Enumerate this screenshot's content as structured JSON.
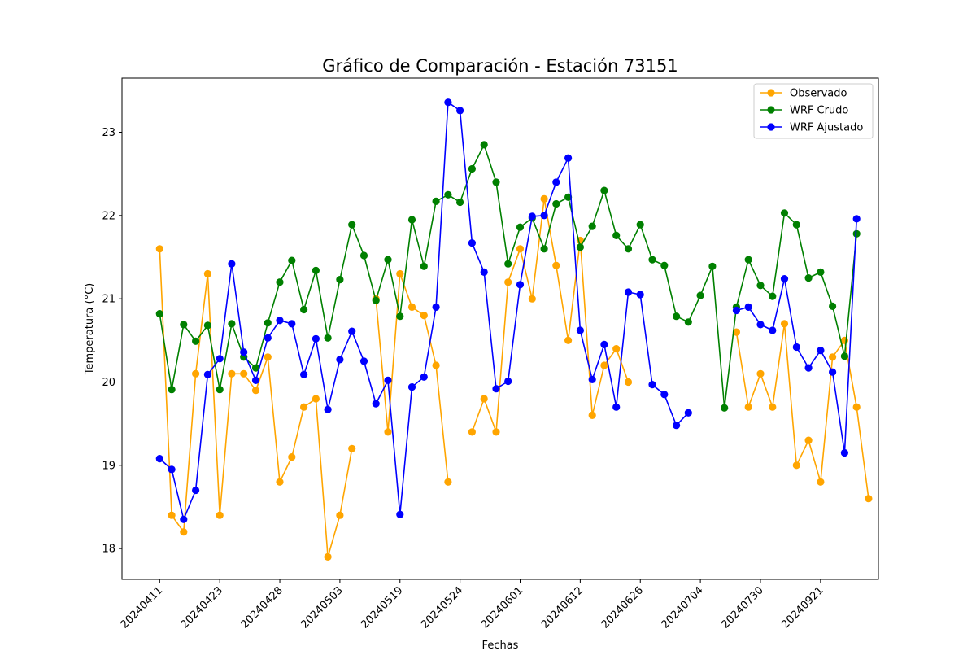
{
  "chart_data": {
    "type": "line",
    "title": "Gráfico de Comparación - Estación 73151",
    "xlabel": "Fechas",
    "ylabel": "Temperatura (°C)",
    "ylim": [
      17.63,
      23.65
    ],
    "yticks": [
      "18",
      "19",
      "20",
      "21",
      "22",
      "23"
    ],
    "xticks": [
      "20240411",
      "20240423",
      "20240428",
      "20240503",
      "20240519",
      "20240524",
      "20240601",
      "20240612",
      "20240626",
      "20240704",
      "20240730",
      "20240921"
    ],
    "xtick_index": [
      0,
      5,
      10,
      15,
      20,
      25,
      30,
      35,
      40,
      45,
      50,
      55
    ],
    "n_points": 60,
    "x_index": [
      0,
      1,
      2,
      3,
      4,
      5,
      6,
      7,
      8,
      9,
      10,
      11,
      12,
      13,
      14,
      15,
      16,
      17,
      18,
      19,
      20,
      21,
      22,
      23,
      24,
      25,
      26,
      27,
      28,
      29,
      30,
      31,
      32,
      33,
      34,
      35,
      36,
      37,
      38,
      39,
      40,
      41,
      42,
      43,
      44,
      45,
      46,
      47,
      48,
      49,
      50,
      51,
      52,
      53,
      54,
      55,
      56,
      57,
      58,
      59
    ],
    "legend_position": "top-right",
    "grid": false,
    "series": [
      {
        "name": "Observado",
        "color": "#ffa500",
        "values": [
          21.6,
          18.4,
          18.2,
          20.1,
          21.3,
          18.4,
          20.1,
          20.1,
          19.9,
          20.3,
          18.8,
          19.1,
          19.7,
          19.8,
          17.9,
          18.4,
          19.2,
          null,
          21.0,
          19.4,
          21.3,
          20.9,
          20.8,
          20.2,
          18.8,
          null,
          19.4,
          19.8,
          19.4,
          21.2,
          21.6,
          21.0,
          22.2,
          21.4,
          20.5,
          21.7,
          19.6,
          20.2,
          20.4,
          20.0,
          null,
          null,
          null,
          null,
          null,
          null,
          null,
          null,
          20.6,
          19.7,
          20.1,
          19.7,
          20.7,
          19.0,
          19.3,
          18.8,
          20.3,
          20.5,
          19.7,
          18.6
        ]
      },
      {
        "name": "WRF Crudo",
        "color": "#008000",
        "values": [
          20.82,
          19.91,
          20.69,
          20.49,
          20.68,
          19.91,
          20.7,
          20.3,
          20.17,
          20.71,
          21.2,
          21.46,
          20.87,
          21.34,
          20.53,
          21.23,
          21.89,
          21.52,
          20.98,
          21.47,
          20.79,
          21.95,
          21.39,
          22.17,
          22.25,
          22.16,
          22.56,
          22.85,
          22.4,
          21.42,
          21.86,
          21.97,
          21.6,
          22.14,
          22.22,
          21.62,
          21.87,
          22.3,
          21.76,
          21.6,
          21.89,
          21.47,
          21.4,
          20.79,
          20.72,
          21.04,
          21.39,
          19.69,
          20.9,
          21.47,
          21.16,
          21.03,
          22.03,
          21.89,
          21.25,
          21.32,
          20.91,
          20.31,
          21.78,
          null
        ]
      },
      {
        "name": "WRF Ajustado",
        "color": "#0000ff",
        "values": [
          19.08,
          18.95,
          18.35,
          18.7,
          20.09,
          20.28,
          21.42,
          20.36,
          20.02,
          20.53,
          20.74,
          20.7,
          20.09,
          20.52,
          19.67,
          20.27,
          20.61,
          20.25,
          19.74,
          20.02,
          18.41,
          19.94,
          20.06,
          20.9,
          23.36,
          23.26,
          21.67,
          21.32,
          19.92,
          20.01,
          21.17,
          21.99,
          22.0,
          22.4,
          22.69,
          20.62,
          20.03,
          20.45,
          19.7,
          21.08,
          21.05,
          19.97,
          19.85,
          19.48,
          19.63,
          null,
          null,
          null,
          20.86,
          20.9,
          20.69,
          20.62,
          21.24,
          20.42,
          20.17,
          20.38,
          20.12,
          19.15,
          21.96,
          null
        ]
      }
    ]
  }
}
